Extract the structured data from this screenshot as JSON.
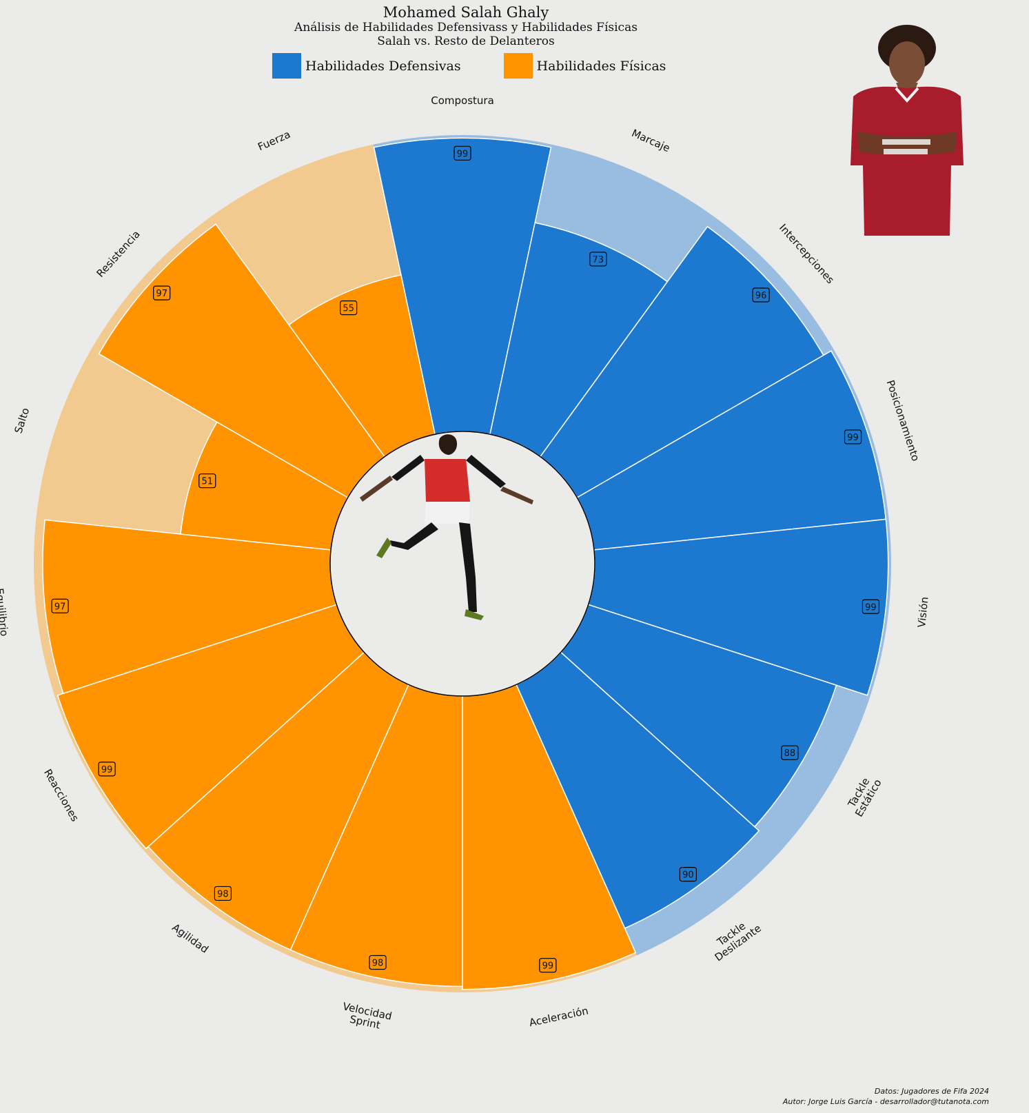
{
  "header": {
    "title": "Mohamed Salah Ghaly",
    "subtitle": "Análisis de Habilidades Defensivass y Habilidades Físicas",
    "subtitle2": "Salah vs. Resto de Delanteros"
  },
  "legend": [
    {
      "label": "Habilidades Defensivas",
      "color": "#1c79cf"
    },
    {
      "label": "Habilidades Físicas",
      "color": "#ff9400"
    }
  ],
  "colors": {
    "defensive": "#1c79cf",
    "defensive_light": "#98bde0",
    "physical": "#ff9400",
    "physical_light": "#f2c98e",
    "background": "#ebebe9"
  },
  "chart_data": {
    "type": "radial-bar",
    "title": "Mohamed Salah Ghaly",
    "subtitle": "Análisis de Habilidades Defensivass y Habilidades Físicas",
    "legend_position": "top",
    "range": [
      0,
      100
    ],
    "categories": [
      {
        "label": [
          "Compostura"
        ],
        "group": "Habilidades Defensivas",
        "value": 99,
        "reference": 100
      },
      {
        "label": [
          "Marcaje"
        ],
        "group": "Habilidades Defensivas",
        "value": 73,
        "reference": 100
      },
      {
        "label": [
          "Intercepciones"
        ],
        "group": "Habilidades Defensivas",
        "value": 96,
        "reference": 100
      },
      {
        "label": [
          "Posicionamiento"
        ],
        "group": "Habilidades Defensivas",
        "value": 99,
        "reference": 100
      },
      {
        "label": [
          "Visión"
        ],
        "group": "Habilidades Defensivas",
        "value": 99,
        "reference": 100
      },
      {
        "label": [
          "Tackle",
          "Estático"
        ],
        "group": "Habilidades Defensivas",
        "value": 88,
        "reference": 100
      },
      {
        "label": [
          "Tackle",
          "Deslizante"
        ],
        "group": "Habilidades Defensivas",
        "value": 90,
        "reference": 100
      },
      {
        "label": [
          "Aceleración"
        ],
        "group": "Habilidades Físicas",
        "value": 99,
        "reference": 100
      },
      {
        "label": [
          "Velocidad",
          "Sprint"
        ],
        "group": "Habilidades Físicas",
        "value": 98,
        "reference": 100
      },
      {
        "label": [
          "Agilidad"
        ],
        "group": "Habilidades Físicas",
        "value": 98,
        "reference": 100
      },
      {
        "label": [
          "Reacciones"
        ],
        "group": "Habilidades Físicas",
        "value": 99,
        "reference": 100
      },
      {
        "label": [
          "Equilibrio"
        ],
        "group": "Habilidades Físicas",
        "value": 97,
        "reference": 100
      },
      {
        "label": [
          "Salto"
        ],
        "group": "Habilidades Físicas",
        "value": 51,
        "reference": 100
      },
      {
        "label": [
          "Resistencia"
        ],
        "group": "Habilidades Físicas",
        "value": 97,
        "reference": 100
      },
      {
        "label": [
          "Fuerza"
        ],
        "group": "Habilidades Físicas",
        "value": 55,
        "reference": 100
      }
    ]
  },
  "footer": {
    "source": "Datos: Jugadores de Fifa 2024",
    "author": "Autor: Jorge Luis García - desarrollador@tutanota.com"
  }
}
